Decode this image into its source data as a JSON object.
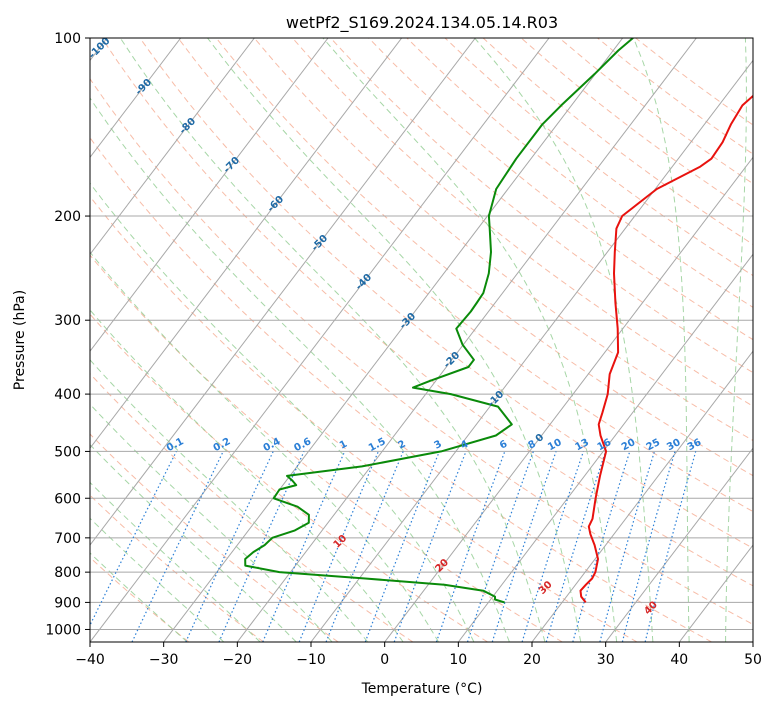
{
  "chart_data": {
    "type": "line",
    "chart_kind": "skew-T log-p",
    "title": "wetPf2_S169.2024.134.05.14.R03",
    "xlabel": "Temperature (°C)",
    "ylabel": "Pressure (hPa)",
    "xlim": [
      -40,
      50
    ],
    "ylim": [
      1050,
      100
    ],
    "y_scale": "log",
    "skew": "isotherms slope up to the right",
    "grid": true,
    "x_ticks": [
      "−40",
      "−30",
      "−20",
      "−10",
      "0",
      "10",
      "20",
      "30",
      "40",
      "50"
    ],
    "y_ticks": [
      "100",
      "200",
      "300",
      "400",
      "500",
      "600",
      "700",
      "800",
      "900",
      "1000"
    ],
    "colors": {
      "temperature": "#e8120e",
      "dewpoint": "#0a8a0a",
      "isotherm": "#a8a8a8",
      "dry_adiabat": "#f4a58a",
      "moist_adiabat": "#90cc90",
      "mixing_ratio": "#2b7fd6",
      "isotherm_label": "#1f6aa5",
      "adiabat_label": "#d62728"
    },
    "series": [
      {
        "kind": "temperature",
        "points": [
          [
            900,
            23.2
          ],
          [
            880,
            22.0
          ],
          [
            860,
            21.3
          ],
          [
            840,
            21.4
          ],
          [
            820,
            21.6
          ],
          [
            800,
            21.4
          ],
          [
            760,
            20.4
          ],
          [
            720,
            18.5
          ],
          [
            690,
            16.8
          ],
          [
            670,
            15.8
          ],
          [
            650,
            15.5
          ],
          [
            600,
            13.8
          ],
          [
            550,
            12.1
          ],
          [
            500,
            10.4
          ],
          [
            470,
            8.0
          ],
          [
            450,
            6.6
          ],
          [
            430,
            5.9
          ],
          [
            400,
            4.7
          ],
          [
            370,
            2.9
          ],
          [
            340,
            1.8
          ],
          [
            310,
            -0.7
          ],
          [
            280,
            -3.7
          ],
          [
            250,
            -6.9
          ],
          [
            230,
            -9.0
          ],
          [
            210,
            -11.2
          ],
          [
            200,
            -11.7
          ],
          [
            180,
            -9.8
          ],
          [
            165,
            -6.2
          ],
          [
            160,
            -5.5
          ],
          [
            150,
            -5.7
          ],
          [
            140,
            -6.4
          ],
          [
            130,
            -6.8
          ],
          [
            120,
            -5.8
          ],
          [
            115,
            -4.4
          ],
          [
            110,
            -2.5
          ],
          [
            105,
            -1.8
          ],
          [
            100,
            -1.9
          ]
        ]
      },
      {
        "kind": "dewpoint",
        "points": [
          [
            900,
            12.2
          ],
          [
            890,
            10.6
          ],
          [
            880,
            10.3
          ],
          [
            860,
            8.1
          ],
          [
            840,
            2.2
          ],
          [
            820,
            -9.2
          ],
          [
            800,
            -21.5
          ],
          [
            780,
            -26.8
          ],
          [
            760,
            -27.5
          ],
          [
            740,
            -27.1
          ],
          [
            720,
            -26.3
          ],
          [
            700,
            -26.0
          ],
          [
            680,
            -23.7
          ],
          [
            660,
            -22.6
          ],
          [
            640,
            -23.4
          ],
          [
            620,
            -25.8
          ],
          [
            600,
            -29.9
          ],
          [
            580,
            -30.0
          ],
          [
            570,
            -28.2
          ],
          [
            560,
            -29.2
          ],
          [
            550,
            -30.4
          ],
          [
            530,
            -21.2
          ],
          [
            500,
            -12.0
          ],
          [
            470,
            -6.2
          ],
          [
            450,
            -5.2
          ],
          [
            420,
            -8.9
          ],
          [
            400,
            -16.6
          ],
          [
            390,
            -22.4
          ],
          [
            380,
            -20.8
          ],
          [
            360,
            -17.0
          ],
          [
            350,
            -17.0
          ],
          [
            330,
            -20.1
          ],
          [
            310,
            -22.6
          ],
          [
            290,
            -22.4
          ],
          [
            280,
            -22.5
          ],
          [
            270,
            -22.6
          ],
          [
            250,
            -23.9
          ],
          [
            230,
            -25.8
          ],
          [
            210,
            -28.4
          ],
          [
            200,
            -29.8
          ],
          [
            180,
            -31.6
          ],
          [
            160,
            -32.0
          ],
          [
            140,
            -32.0
          ],
          [
            130,
            -31.4
          ],
          [
            115,
            -30.1
          ],
          [
            105,
            -29.3
          ],
          [
            100,
            -28.6
          ]
        ]
      }
    ],
    "isotherm_labels": [
      "-100",
      "-90",
      "-80",
      "-70",
      "-60",
      "-50",
      "-40",
      "-30",
      "-20",
      "-10",
      "0"
    ],
    "mixing_ratio_labels": [
      "0.1",
      "0.2",
      "0.4",
      "0.6",
      "1",
      "1.5",
      "2",
      "3",
      "4",
      "6",
      "8",
      "10",
      "13",
      "16",
      "20",
      "25",
      "30",
      "36"
    ],
    "dry_adiabat_labels": [
      "10",
      "20",
      "30",
      "40"
    ]
  }
}
